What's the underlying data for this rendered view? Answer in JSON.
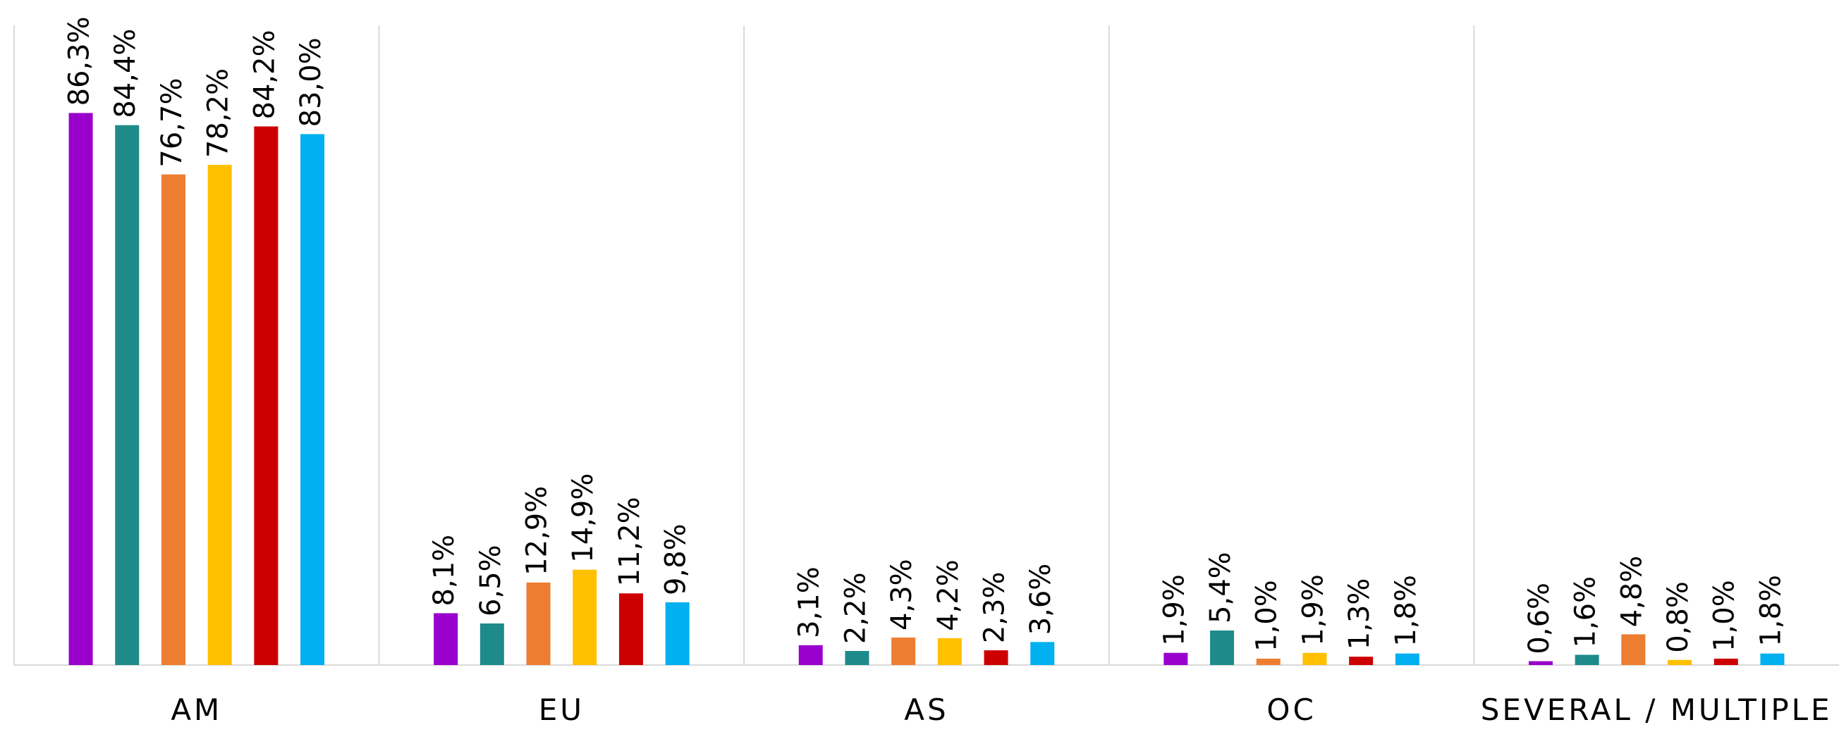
{
  "chart_data": {
    "type": "bar",
    "categories": [
      "AM",
      "EU",
      "AS",
      "OC",
      "SEVERAL / MULTIPLE"
    ],
    "ylim": [
      0,
      100
    ],
    "series": [
      {
        "color": "#9900cc",
        "values": [
          86.3,
          8.1,
          3.1,
          1.9,
          0.6
        ],
        "value_labels": [
          "86,3%",
          "8,1%",
          "3,1%",
          "1,9%",
          "0,6%"
        ]
      },
      {
        "color": "#1f8a8a",
        "values": [
          84.4,
          6.5,
          2.2,
          5.4,
          1.6
        ],
        "value_labels": [
          "84,4%",
          "6,5%",
          "2,2%",
          "5,4%",
          "1,6%"
        ]
      },
      {
        "color": "#ed7d31",
        "values": [
          76.7,
          12.9,
          4.3,
          1.0,
          4.8
        ],
        "value_labels": [
          "76,7%",
          "12,9%",
          "4,3%",
          "1,0%",
          "4,8%"
        ]
      },
      {
        "color": "#ffc000",
        "values": [
          78.2,
          14.9,
          4.2,
          1.9,
          0.8
        ],
        "value_labels": [
          "78,2%",
          "14,9%",
          "4,2%",
          "1,9%",
          "0,8%"
        ]
      },
      {
        "color": "#cc0000",
        "values": [
          84.2,
          11.2,
          2.3,
          1.3,
          1.0
        ],
        "value_labels": [
          "84,2%",
          "11,2%",
          "2,3%",
          "1,3%",
          "1,0%"
        ]
      },
      {
        "color": "#00b0f0",
        "values": [
          83.0,
          9.8,
          3.6,
          1.8,
          1.8
        ],
        "value_labels": [
          "83,0%",
          "9,8%",
          "3,6%",
          "1,8%",
          "1,8%"
        ]
      }
    ]
  }
}
